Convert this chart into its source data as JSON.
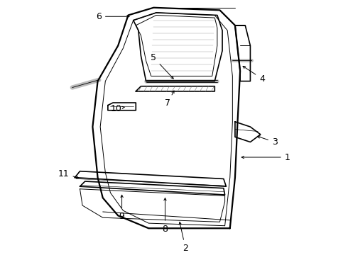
{
  "bg_color": "#ffffff",
  "line_color": "#000000",
  "fig_width": 4.9,
  "fig_height": 3.6,
  "dpi": 100,
  "font_size": 9,
  "arrow_lw": 0.7
}
